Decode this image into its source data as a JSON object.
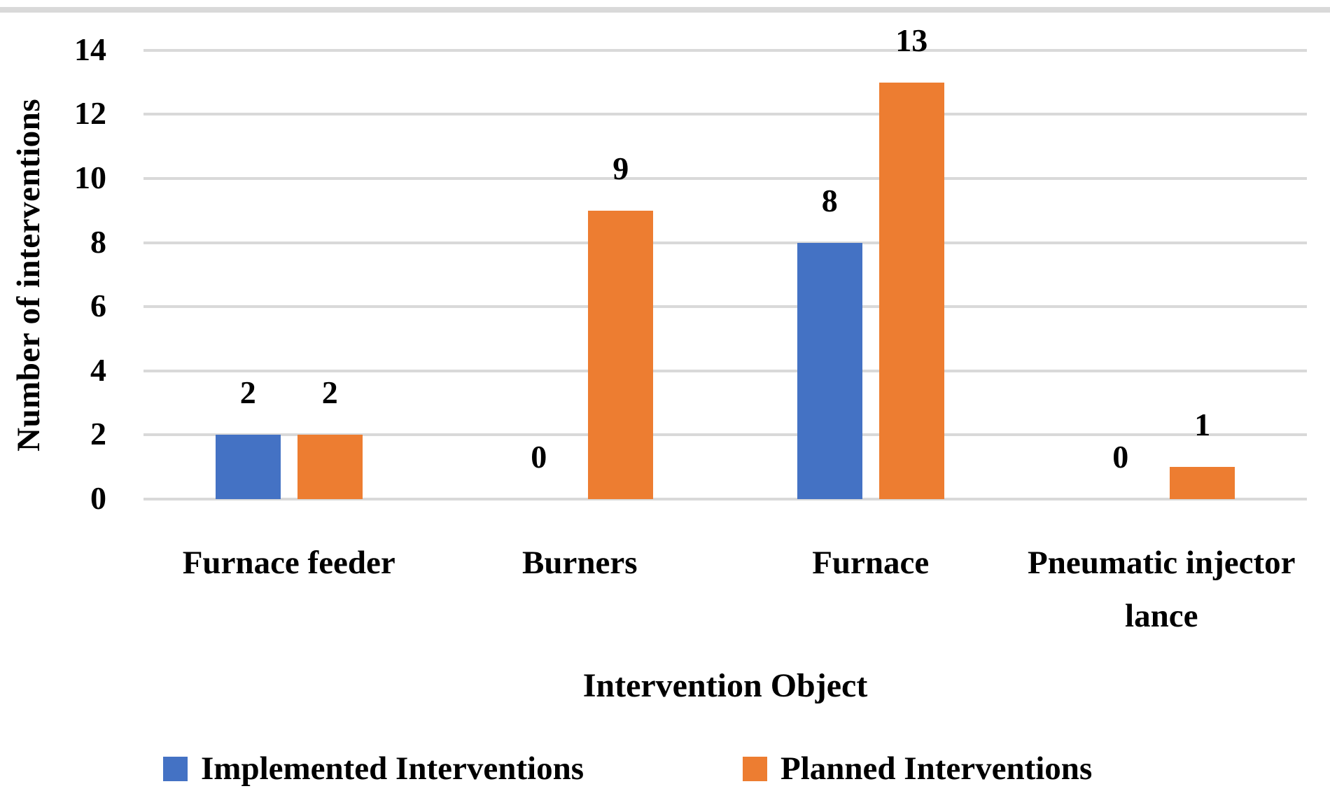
{
  "figure": {
    "background": "#FFFFFF",
    "text_color": "#000000",
    "top_border_color": "#D9D9D9"
  },
  "chart_data": {
    "type": "bar",
    "title": "",
    "xlabel": "Intervention Object",
    "ylabel": "Number of interventions",
    "categories": [
      "Furnace feeder",
      "Burners",
      "Furnace",
      "Pneumatic injector lance"
    ],
    "series": [
      {
        "name": "Implemented Interventions",
        "color": "#4472C4",
        "values": [
          2,
          0,
          8,
          0
        ]
      },
      {
        "name": "Planned Interventions",
        "color": "#ED7D31",
        "values": [
          2,
          9,
          13,
          1
        ]
      }
    ],
    "data_labels": {
      "Implemented Interventions": [
        2,
        0,
        8,
        0
      ],
      "Planned Interventions": [
        2,
        9,
        13,
        1
      ]
    },
    "ylim": [
      0,
      14
    ],
    "yticks": [
      0,
      2,
      4,
      6,
      8,
      10,
      12,
      14
    ],
    "grid": "horizontal",
    "gridline_color": "#D9D9D9",
    "legend_position": "bottom",
    "legend": [
      "Implemented Interventions",
      "Planned Interventions"
    ]
  }
}
